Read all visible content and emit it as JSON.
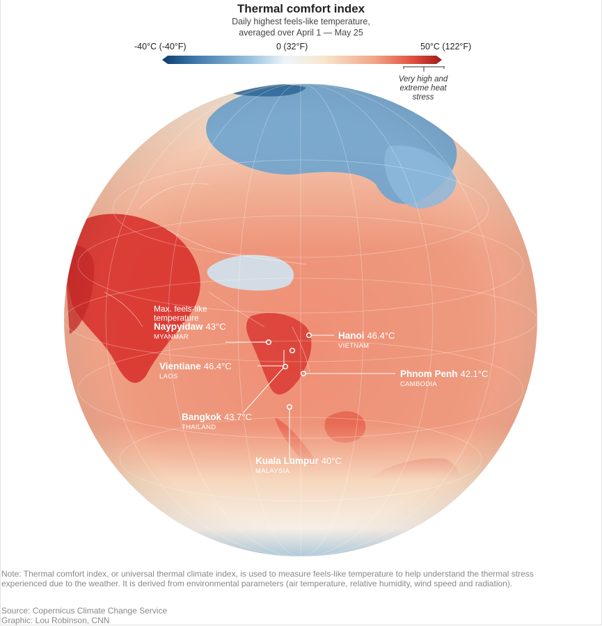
{
  "header": {
    "title": "Thermal comfort index",
    "subtitle_line1": "Daily highest feels-like temperature,",
    "subtitle_line2": "averaged over April 1 — May 25"
  },
  "legend": {
    "min_label": "-40°C (-40°F)",
    "mid_label": "0 (32°F)",
    "max_label": "50°C (122°F)",
    "stress_line1": "Very high and",
    "stress_line2": "extreme heat",
    "stress_line3": "stress",
    "colors": [
      "#0b3d6b",
      "#3f79ad",
      "#9cc4e0",
      "#eef5f9",
      "#f8e6cc",
      "#f1a487",
      "#df4d3e",
      "#9e1b1b"
    ]
  },
  "map": {
    "annotation_line1": "Max. feels-like",
    "annotation_line2": "temperature",
    "cities": [
      {
        "name": "Naypyidaw",
        "value": "43°C",
        "country": "MYANMAR"
      },
      {
        "name": "Hanoi",
        "value": "46.4°C",
        "country": "VIETNAM"
      },
      {
        "name": "Vientiane",
        "value": "46.4°C",
        "country": "LAOS"
      },
      {
        "name": "Phnom Penh",
        "value": "42.1°C",
        "country": "CAMBODIA"
      },
      {
        "name": "Bangkok",
        "value": "43.7°C",
        "country": "THAILAND"
      },
      {
        "name": "Kuala Lumpur",
        "value": "40°C",
        "country": "MALAYSIA"
      }
    ]
  },
  "footer": {
    "note": "Note: Thermal comfort index, or universal thermal climate index, is used to measure feels-like temperature to help understand the thermal stress experienced due to the weather. It is derived from environmental parameters (air temperature, relative humidity, wind speed and radiation).",
    "source": "Source: Copernicus Climate Change Service",
    "credit": "Graphic: Lou Robinson, CNN"
  }
}
